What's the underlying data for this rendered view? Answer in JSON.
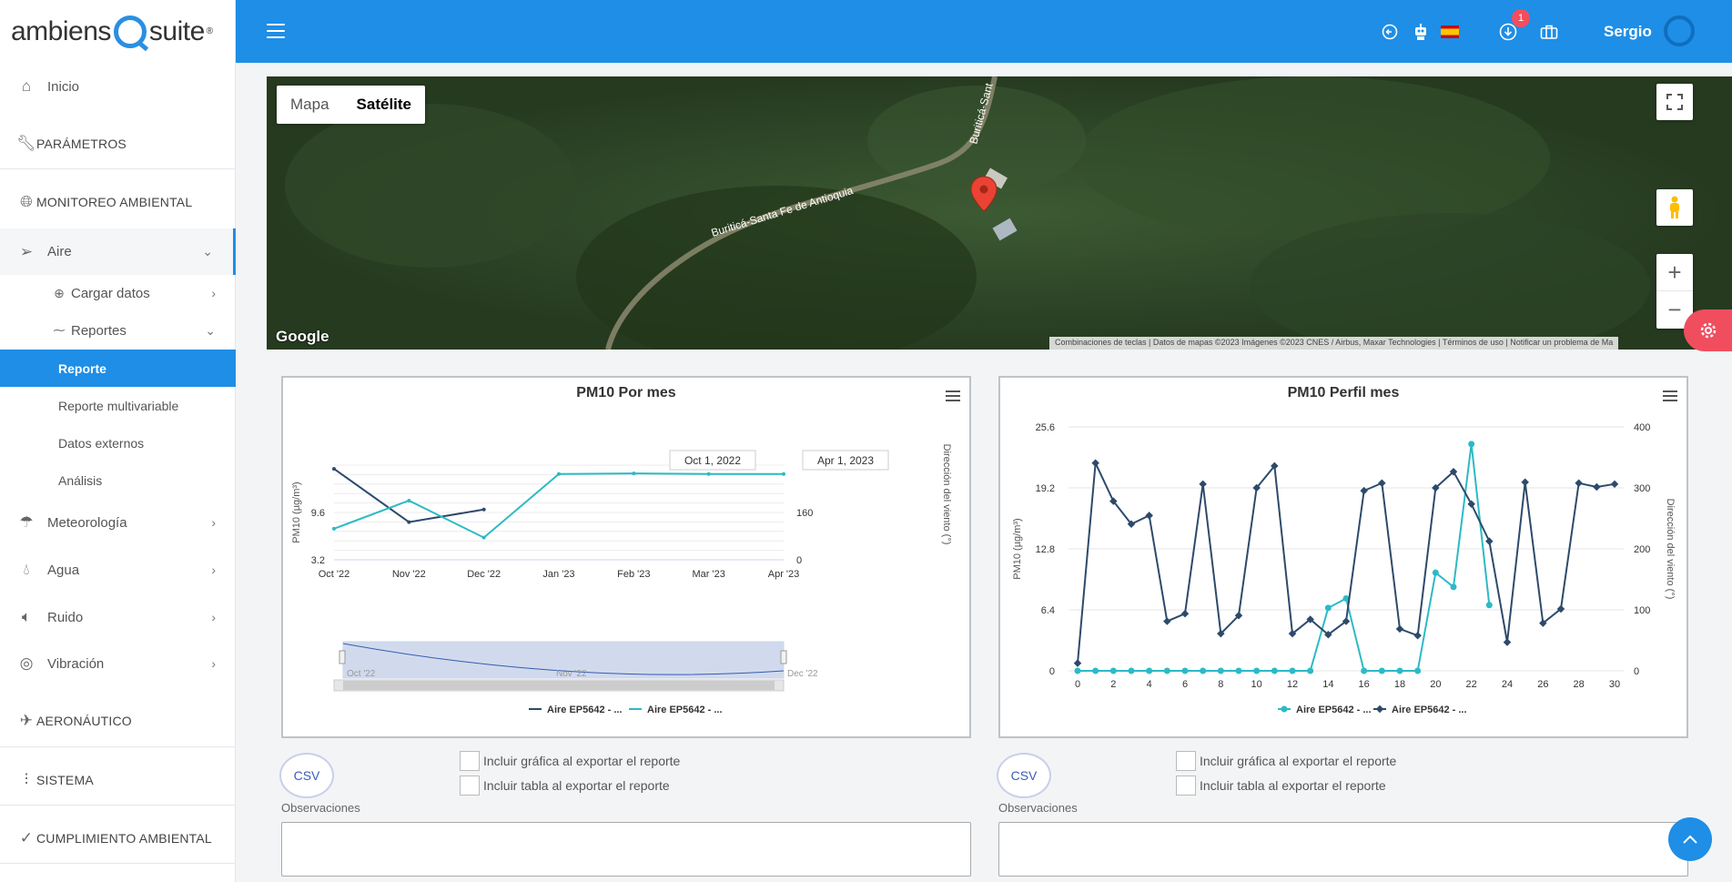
{
  "brand": {
    "name_left": "ambiens",
    "name_right": "suite",
    "reg": "®"
  },
  "sidebar": {
    "inicio": "Inicio",
    "parametros": "PARÁMETROS",
    "monitoreo": "MONITOREO AMBIENTAL",
    "aire": "Aire",
    "cargar_datos": "Cargar datos",
    "reportes": "Reportes",
    "reporte": "Reporte",
    "reporte_multivariable": "Reporte multivariable",
    "datos_externos": "Datos externos",
    "analisis": "Análisis",
    "meteorologia": "Meteorología",
    "agua": "Agua",
    "ruido": "Ruido",
    "vibracion": "Vibración",
    "aeronautico": "AERONÁUTICO",
    "sistema": "SISTEMA",
    "cumplimiento": "CUMPLIMIENTO AMBIENTAL"
  },
  "header": {
    "user": "Sergio",
    "notifications": "1",
    "icons": [
      "back-icon",
      "robot-icon",
      "spain-flag-icon",
      "download-icon",
      "briefcase-icon"
    ]
  },
  "map": {
    "tab_map": "Mapa",
    "tab_satellite": "Satélite",
    "road_label_1": "Buriticá-Santa Fe de Antioquia",
    "road_label_2": "Buriticá-Sant",
    "google": "Google",
    "footer": "Combinaciones de teclas | Datos de mapas ©2023 Imágenes ©2023 CNES / Airbus, Maxar Technologies | Términos de uso | Notificar un problema de Ma"
  },
  "chart_data": [
    {
      "type": "line",
      "title": "PM10 Por mes",
      "ylabel": "PM10 (µg/m³)",
      "y2label": "Dirección del viento (°)",
      "x": [
        "Oct '22",
        "Nov '22",
        "Dec '22",
        "Jan '23",
        "Feb '23",
        "Mar '23",
        "Apr '23"
      ],
      "ylim": [
        3.2,
        16
      ],
      "y_ticks": [
        "3.2",
        "9.6"
      ],
      "y2lim": [
        0,
        320
      ],
      "y2_ticks": [
        "0",
        "160"
      ],
      "range_from": "Oct 1, 2022",
      "range_to": "Apr 1, 2023",
      "navigator_labels": [
        "Oct '22",
        "Nov '22",
        "Dec '22"
      ],
      "series": [
        {
          "name": "Aire EP5642 - ...",
          "color": "#2d4a6b",
          "axis": "left",
          "values": [
            15.5,
            8.3,
            10.0,
            null,
            null,
            null,
            null
          ]
        },
        {
          "name": "Aire EP5642 - ...",
          "color": "#2bbac6",
          "axis": "right",
          "values": [
            105,
            200,
            75,
            290,
            292,
            290,
            290
          ]
        }
      ]
    },
    {
      "type": "line",
      "title": "PM10 Perfil mes",
      "ylabel": "PM10 (µg/m³)",
      "y2label": "Dirección del viento (°)",
      "x": [
        0,
        1,
        2,
        3,
        4,
        5,
        6,
        7,
        8,
        9,
        10,
        11,
        12,
        13,
        14,
        15,
        16,
        17,
        18,
        19,
        20,
        21,
        22,
        23,
        24,
        25,
        26,
        27,
        28,
        29,
        30
      ],
      "x_ticks": [
        "0",
        "2",
        "4",
        "6",
        "8",
        "10",
        "12",
        "14",
        "16",
        "18",
        "20",
        "22",
        "24",
        "26",
        "28",
        "30"
      ],
      "ylim": [
        0,
        25.6
      ],
      "y_ticks": [
        "0",
        "6.4",
        "12.8",
        "19.2",
        "25.6"
      ],
      "y2lim": [
        0,
        400
      ],
      "y2_ticks": [
        "0",
        "100",
        "200",
        "300",
        "400"
      ],
      "series": [
        {
          "name": "Aire EP5642 - ...",
          "color": "#2bbac6",
          "axis": "left",
          "values": [
            0,
            0,
            0,
            0,
            0,
            0,
            0,
            0,
            0,
            0,
            0,
            0,
            0,
            0,
            6.6,
            7.6,
            0,
            0,
            0,
            0,
            10.3,
            8.8,
            23.8,
            6.9,
            null,
            null,
            null,
            null,
            null,
            null,
            null
          ]
        },
        {
          "name": "Aire EP5642 - ...",
          "color": "#2d4a6b",
          "axis": "left",
          "values": [
            0.8,
            21.8,
            17.8,
            15.4,
            16.3,
            5.2,
            6.0,
            19.6,
            3.9,
            5.8,
            19.2,
            21.5,
            3.9,
            5.4,
            3.8,
            5.2,
            18.9,
            19.7,
            4.4,
            3.7,
            19.2,
            20.9,
            17.5,
            13.6,
            3.0,
            19.8,
            5.0,
            6.5,
            19.7,
            19.3,
            19.6
          ]
        }
      ]
    }
  ],
  "controls": {
    "csv": "CSV",
    "include_chart": "Incluir gráfica al exportar el reporte",
    "include_table": "Incluir tabla al exportar el reporte",
    "observaciones": "Observaciones"
  }
}
